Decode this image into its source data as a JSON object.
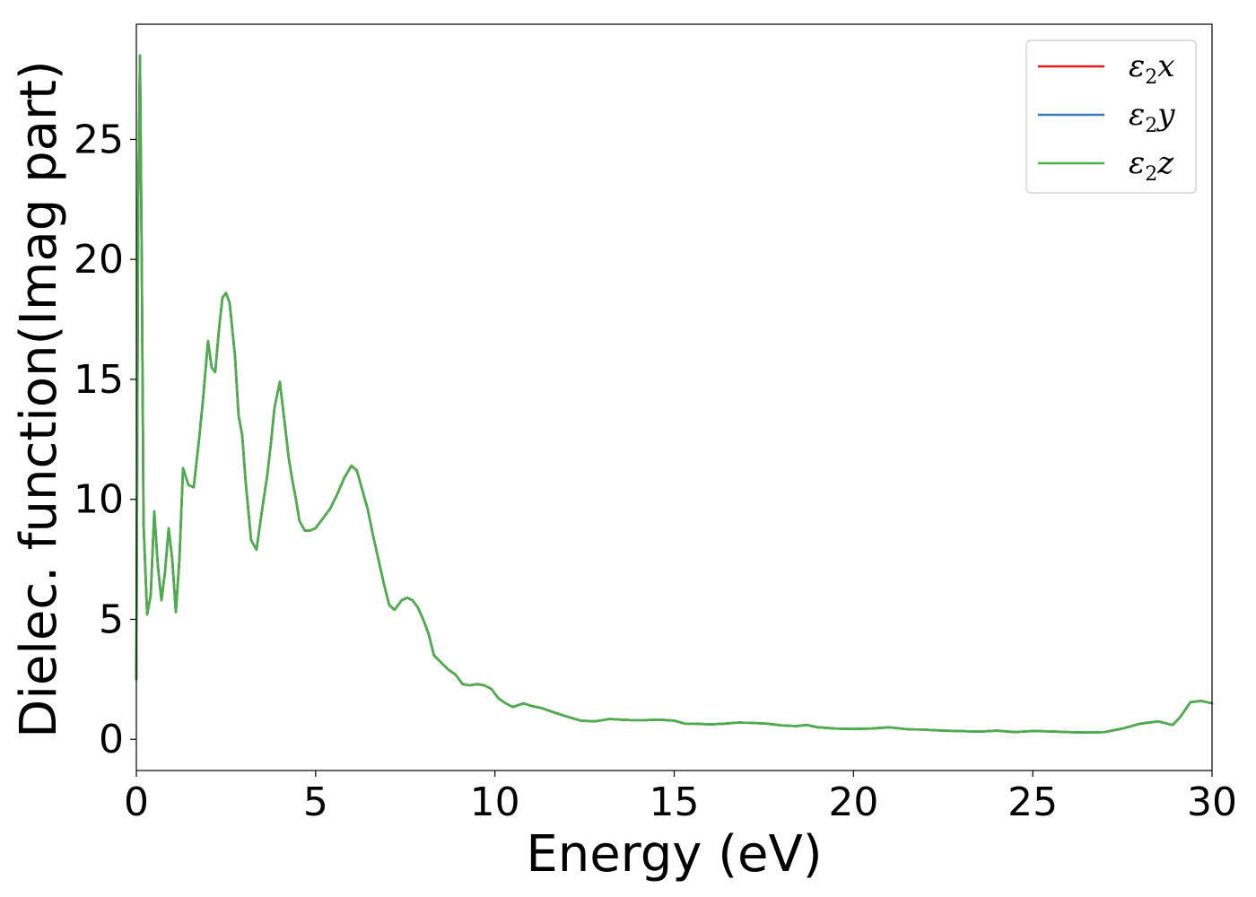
{
  "chart_data": {
    "type": "line",
    "xlabel": "Energy (eV)",
    "ylabel": "Dielec. function(Imag part)",
    "xlim": [
      0,
      30
    ],
    "ylim": [
      -1.3,
      29.8
    ],
    "xticks": [
      0,
      5,
      10,
      15,
      20,
      25,
      30
    ],
    "yticks": [
      0,
      5,
      10,
      15,
      20,
      25
    ],
    "grid": false,
    "legend_position": "top-right",
    "x": [
      0.0,
      0.05,
      0.1,
      0.15,
      0.2,
      0.3,
      0.4,
      0.5,
      0.6,
      0.7,
      0.8,
      0.9,
      1.0,
      1.1,
      1.2,
      1.3,
      1.45,
      1.6,
      1.75,
      1.85,
      2.0,
      2.1,
      2.2,
      2.3,
      2.4,
      2.5,
      2.6,
      2.75,
      2.85,
      2.95,
      3.05,
      3.2,
      3.35,
      3.5,
      3.65,
      3.75,
      3.85,
      4.0,
      4.15,
      4.25,
      4.35,
      4.45,
      4.55,
      4.7,
      4.85,
      5.0,
      5.2,
      5.4,
      5.6,
      5.8,
      6.0,
      6.15,
      6.3,
      6.45,
      6.6,
      6.75,
      6.9,
      7.05,
      7.2,
      7.4,
      7.55,
      7.7,
      7.85,
      8.0,
      8.15,
      8.3,
      8.5,
      8.7,
      8.9,
      9.1,
      9.3,
      9.5,
      9.7,
      9.9,
      10.1,
      10.3,
      10.5,
      10.8,
      11.0,
      11.3,
      11.6,
      12.0,
      12.4,
      12.8,
      13.2,
      13.5,
      13.8,
      14.2,
      14.6,
      15.0,
      15.3,
      15.6,
      16.0,
      16.4,
      16.8,
      17.2,
      17.6,
      18.0,
      18.4,
      18.7,
      19.0,
      19.5,
      20.0,
      20.5,
      21.0,
      21.5,
      22.0,
      22.5,
      23.0,
      23.5,
      24.0,
      24.5,
      25.0,
      25.5,
      26.0,
      26.5,
      27.0,
      27.5,
      28.0,
      28.5,
      28.9,
      29.1,
      29.4,
      29.7,
      30.0
    ],
    "series": [
      {
        "name": "ε2x",
        "color": "#e41a1c",
        "values": [
          2.5,
          22.0,
          28.5,
          20.0,
          9.0,
          5.2,
          6.0,
          9.5,
          7.2,
          5.8,
          7.0,
          8.8,
          7.5,
          5.3,
          7.5,
          11.3,
          10.6,
          10.5,
          12.5,
          14.0,
          16.6,
          15.5,
          15.3,
          17.0,
          18.4,
          18.6,
          18.2,
          16.0,
          13.5,
          12.7,
          10.7,
          8.3,
          7.9,
          9.5,
          11.0,
          12.3,
          13.8,
          14.9,
          13.0,
          11.7,
          10.8,
          10.0,
          9.1,
          8.7,
          8.7,
          8.8,
          9.2,
          9.6,
          10.2,
          10.9,
          11.4,
          11.2,
          10.4,
          9.6,
          8.5,
          7.5,
          6.5,
          5.6,
          5.4,
          5.8,
          5.9,
          5.8,
          5.5,
          5.0,
          4.4,
          3.5,
          3.2,
          2.9,
          2.7,
          2.3,
          2.25,
          2.3,
          2.25,
          2.1,
          1.7,
          1.5,
          1.35,
          1.5,
          1.4,
          1.3,
          1.15,
          0.95,
          0.78,
          0.75,
          0.85,
          0.82,
          0.8,
          0.8,
          0.82,
          0.78,
          0.65,
          0.65,
          0.62,
          0.65,
          0.7,
          0.68,
          0.65,
          0.58,
          0.55,
          0.6,
          0.5,
          0.45,
          0.43,
          0.45,
          0.5,
          0.42,
          0.4,
          0.36,
          0.34,
          0.32,
          0.36,
          0.3,
          0.35,
          0.33,
          0.3,
          0.28,
          0.3,
          0.45,
          0.65,
          0.75,
          0.6,
          0.9,
          1.55,
          1.6,
          1.5
        ]
      },
      {
        "name": "ε2y",
        "color": "#377eb8",
        "values": [
          2.5,
          22.0,
          28.5,
          20.0,
          9.0,
          5.2,
          6.0,
          9.5,
          7.2,
          5.8,
          7.0,
          8.8,
          7.5,
          5.3,
          7.5,
          11.3,
          10.6,
          10.5,
          12.5,
          14.0,
          16.6,
          15.5,
          15.3,
          17.0,
          18.4,
          18.6,
          18.2,
          16.0,
          13.5,
          12.7,
          10.7,
          8.3,
          7.9,
          9.5,
          11.0,
          12.3,
          13.8,
          14.9,
          13.0,
          11.7,
          10.8,
          10.0,
          9.1,
          8.7,
          8.7,
          8.8,
          9.2,
          9.6,
          10.2,
          10.9,
          11.4,
          11.2,
          10.4,
          9.6,
          8.5,
          7.5,
          6.5,
          5.6,
          5.4,
          5.8,
          5.9,
          5.8,
          5.5,
          5.0,
          4.4,
          3.5,
          3.2,
          2.9,
          2.7,
          2.3,
          2.25,
          2.3,
          2.25,
          2.1,
          1.7,
          1.5,
          1.35,
          1.5,
          1.4,
          1.3,
          1.15,
          0.95,
          0.78,
          0.75,
          0.85,
          0.82,
          0.8,
          0.8,
          0.82,
          0.78,
          0.65,
          0.65,
          0.62,
          0.65,
          0.7,
          0.68,
          0.65,
          0.58,
          0.55,
          0.6,
          0.5,
          0.45,
          0.43,
          0.45,
          0.5,
          0.42,
          0.4,
          0.36,
          0.34,
          0.32,
          0.36,
          0.3,
          0.35,
          0.33,
          0.3,
          0.28,
          0.3,
          0.45,
          0.65,
          0.75,
          0.6,
          0.9,
          1.55,
          1.6,
          1.5
        ]
      },
      {
        "name": "ε2z",
        "color": "#4daf4a",
        "values": [
          2.5,
          22.0,
          28.5,
          20.0,
          9.0,
          5.2,
          6.0,
          9.5,
          7.2,
          5.8,
          7.0,
          8.8,
          7.5,
          5.3,
          7.5,
          11.3,
          10.6,
          10.5,
          12.5,
          14.0,
          16.6,
          15.5,
          15.3,
          17.0,
          18.4,
          18.6,
          18.2,
          16.0,
          13.5,
          12.7,
          10.7,
          8.3,
          7.9,
          9.5,
          11.0,
          12.3,
          13.8,
          14.9,
          13.0,
          11.7,
          10.8,
          10.0,
          9.1,
          8.7,
          8.7,
          8.8,
          9.2,
          9.6,
          10.2,
          10.9,
          11.4,
          11.2,
          10.4,
          9.6,
          8.5,
          7.5,
          6.5,
          5.6,
          5.4,
          5.8,
          5.9,
          5.8,
          5.5,
          5.0,
          4.4,
          3.5,
          3.2,
          2.9,
          2.7,
          2.3,
          2.25,
          2.3,
          2.25,
          2.1,
          1.7,
          1.5,
          1.35,
          1.5,
          1.4,
          1.3,
          1.15,
          0.95,
          0.78,
          0.75,
          0.85,
          0.82,
          0.8,
          0.8,
          0.82,
          0.78,
          0.65,
          0.65,
          0.62,
          0.65,
          0.7,
          0.68,
          0.65,
          0.58,
          0.55,
          0.6,
          0.5,
          0.45,
          0.43,
          0.45,
          0.5,
          0.42,
          0.4,
          0.36,
          0.34,
          0.32,
          0.36,
          0.3,
          0.35,
          0.33,
          0.3,
          0.28,
          0.3,
          0.45,
          0.65,
          0.75,
          0.6,
          0.9,
          1.55,
          1.6,
          1.5
        ]
      }
    ]
  }
}
